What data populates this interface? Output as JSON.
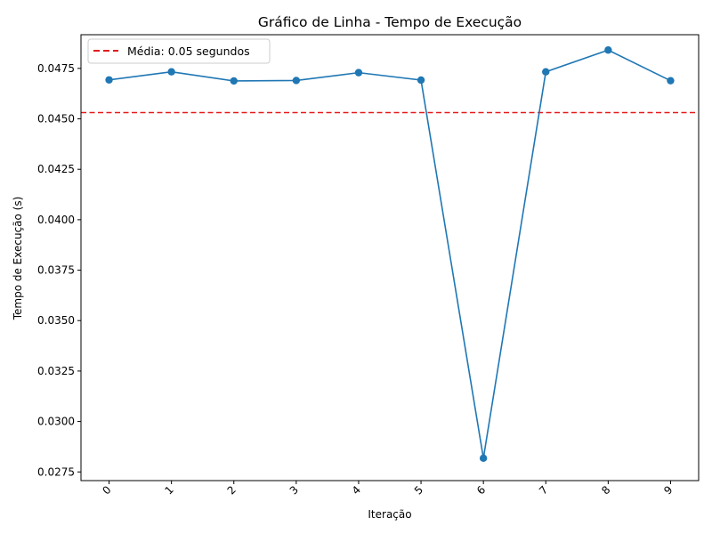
{
  "chart_data": {
    "type": "line",
    "title": "Gráfico de Linha - Tempo de Execução",
    "xlabel": "Iteração",
    "ylabel": "Tempo de Execução (s)",
    "x": [
      0,
      1,
      2,
      3,
      4,
      5,
      6,
      7,
      8,
      9
    ],
    "x_tick_labels": [
      "0",
      "1",
      "2",
      "3",
      "4",
      "5",
      "6",
      "7",
      "8",
      "9"
    ],
    "y_ticks": [
      0.0275,
      0.03,
      0.0325,
      0.035,
      0.0375,
      0.04,
      0.0425,
      0.045,
      0.0475
    ],
    "y_tick_labels": [
      "0.0275",
      "0.0300",
      "0.0325",
      "0.0350",
      "0.0375",
      "0.0400",
      "0.0425",
      "0.0450",
      "0.0475"
    ],
    "xlim": [
      -0.45,
      9.45
    ],
    "ylim": [
      0.02707,
      0.04917
    ],
    "grid": false,
    "legend_position": "top-left",
    "series": [
      {
        "values": [
          0.04693,
          0.04733,
          0.04688,
          0.0469,
          0.04729,
          0.04692,
          0.02818,
          0.04733,
          0.04841,
          0.04689
        ],
        "color": "#1f77b4",
        "marker": "circle"
      }
    ],
    "reference_lines": [
      {
        "label": "Média: 0.05 segundos",
        "value": 0.04531,
        "color": "#e41a1c",
        "style": "dashed"
      }
    ]
  }
}
